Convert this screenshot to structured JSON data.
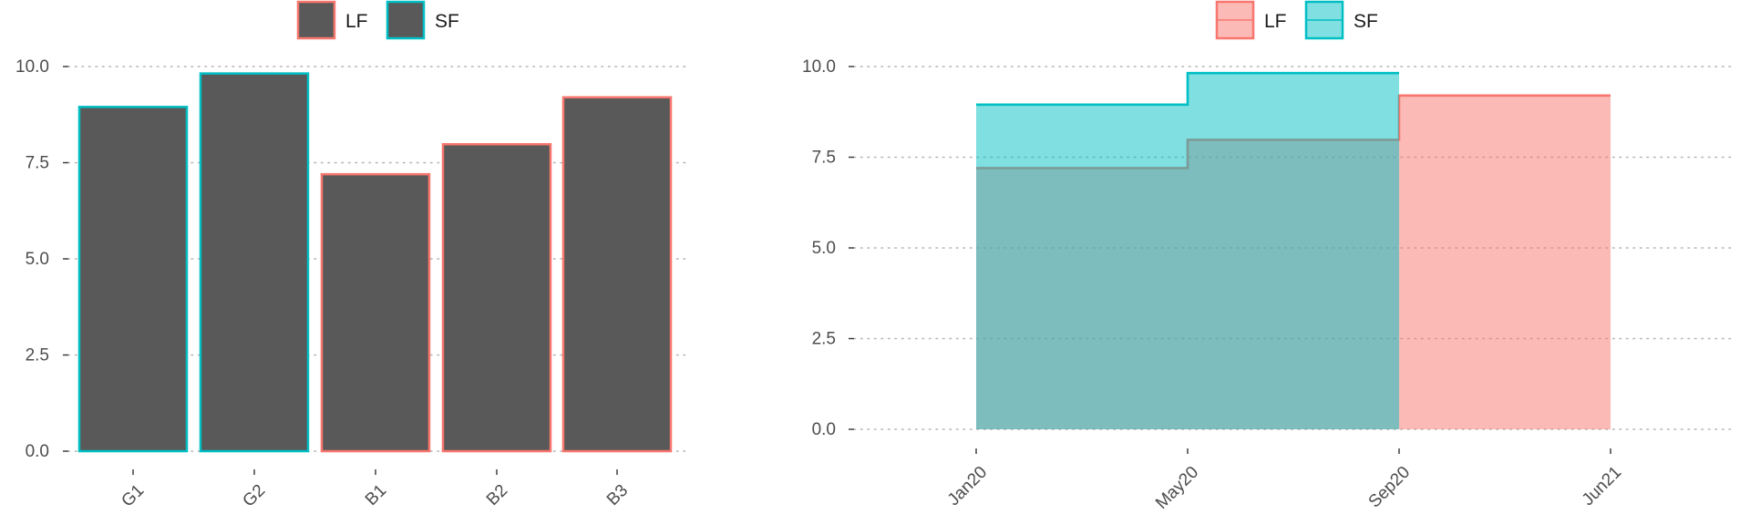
{
  "chart_data": [
    {
      "type": "bar",
      "categories": [
        "G1",
        "G2",
        "B1",
        "B2",
        "B3"
      ],
      "values": [
        8.95,
        9.82,
        7.2,
        7.98,
        9.2
      ],
      "group": [
        "SF",
        "SF",
        "LF",
        "LF",
        "LF"
      ],
      "fill_color": "#595959",
      "ylim": [
        0,
        10.4
      ],
      "yticks": [
        "0.0",
        "2.5",
        "5.0",
        "7.5",
        "10.0"
      ],
      "ytick_values": [
        0,
        2.5,
        5,
        7.5,
        10
      ],
      "grid": "horizontal-dotted",
      "legend": {
        "placement": "top",
        "entries": [
          {
            "label": "LF",
            "color": "#f8766d"
          },
          {
            "label": "SF",
            "color": "#00bfc4"
          }
        ]
      }
    },
    {
      "type": "area",
      "step": true,
      "xticks": [
        "Jan20",
        "May20",
        "Sep20",
        "Jun21"
      ],
      "series": [
        {
          "name": "LF",
          "color": "#f8766d",
          "x": [
            "Jan20",
            "May20",
            "Sep20",
            "Jun21"
          ],
          "values": [
            7.2,
            7.98,
            9.2,
            9.2
          ]
        },
        {
          "name": "SF",
          "color": "#00bfc4",
          "x": [
            "Jan20",
            "May20",
            "Sep20"
          ],
          "values": [
            8.95,
            9.82,
            9.82
          ]
        }
      ],
      "ylim": [
        0,
        10.4
      ],
      "yticks": [
        "0.0",
        "2.5",
        "5.0",
        "7.5",
        "10.0"
      ],
      "ytick_values": [
        0,
        2.5,
        5,
        7.5,
        10
      ],
      "grid": "horizontal-dotted",
      "legend": {
        "placement": "top",
        "entries": [
          {
            "label": "LF",
            "color": "#f8766d"
          },
          {
            "label": "SF",
            "color": "#00bfc4"
          }
        ]
      }
    }
  ]
}
